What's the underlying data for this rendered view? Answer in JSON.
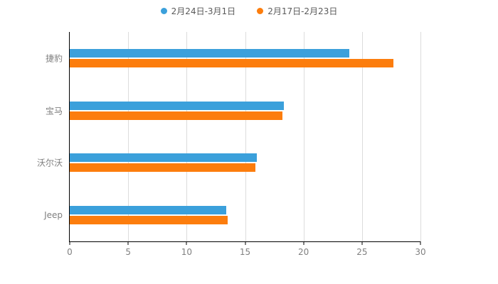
{
  "chart_data": {
    "type": "bar",
    "orientation": "horizontal",
    "title": "",
    "xlabel": "",
    "ylabel": "",
    "categories": [
      "捷豹",
      "宝马",
      "沃尔沃",
      "Jeep"
    ],
    "series": [
      {
        "name": "2月24日-3月1日",
        "color": "#3BA0DB",
        "values": [
          23.9,
          18.3,
          16.0,
          13.4
        ]
      },
      {
        "name": "2月17日-2月23日",
        "color": "#FC7D0D",
        "values": [
          27.7,
          18.2,
          15.9,
          13.5
        ]
      }
    ],
    "xlim": [
      0,
      30
    ],
    "xticks": [
      0,
      5,
      10,
      15,
      20,
      25,
      30
    ],
    "grid": true,
    "legend_position": "top"
  },
  "colors": {
    "background": "#ffffff",
    "axis": "#000000",
    "gridline": "#dcdcdc",
    "tick_label": "#808080",
    "category_label": "#808080",
    "legend_label": "#595959"
  }
}
